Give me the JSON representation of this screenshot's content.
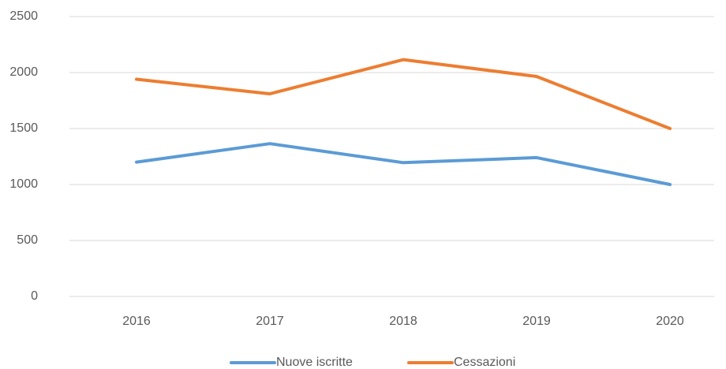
{
  "chart_data": {
    "type": "line",
    "categories": [
      "2016",
      "2017",
      "2018",
      "2019",
      "2020"
    ],
    "series": [
      {
        "name": "Nuove iscritte",
        "color": "#5b9bd5",
        "values": [
          1200,
          1365,
          1195,
          1240,
          1000
        ]
      },
      {
        "name": "Cessazioni",
        "color": "#ed7d31",
        "values": [
          1940,
          1810,
          2115,
          1965,
          1500
        ]
      }
    ],
    "ylim": [
      0,
      2500
    ],
    "yticks": [
      0,
      500,
      1000,
      1500,
      2000,
      2500
    ],
    "grid": true,
    "legend": "bottom"
  }
}
